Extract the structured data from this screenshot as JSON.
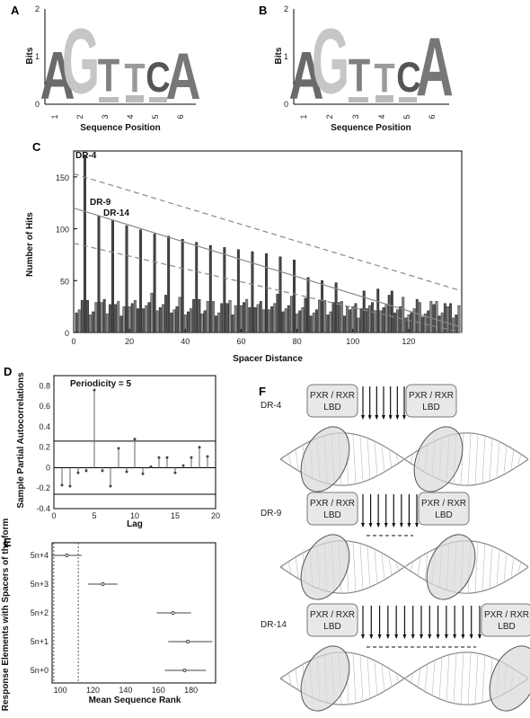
{
  "panels": {
    "A": {
      "label": "A",
      "ylabel": "Bits",
      "xlabel": "Sequence Position",
      "y_ticks": [
        "0",
        "1",
        "2"
      ],
      "x_ticks": [
        "1",
        "2",
        "3",
        "4",
        "5",
        "6"
      ],
      "letters": [
        "A",
        "G",
        "T",
        "T",
        "C",
        "A"
      ]
    },
    "B": {
      "label": "B",
      "ylabel": "Bits",
      "xlabel": "Sequence Position",
      "y_ticks": [
        "0",
        "1",
        "2"
      ],
      "x_ticks": [
        "1",
        "2",
        "3",
        "4",
        "5",
        "6"
      ],
      "letters": [
        "A",
        "G",
        "T",
        "T",
        "C",
        "A"
      ]
    },
    "C": {
      "label": "C",
      "ylabel": "Number of Hits",
      "xlabel": "Spacer Distance",
      "annotations": [
        "DR-4",
        "DR-9",
        "DR-14"
      ]
    },
    "D": {
      "label": "D",
      "ylabel": "Sample Partial Autocorrelations",
      "xlabel": "Lag",
      "annotation": "Periodicity = 5"
    },
    "E": {
      "label": "E",
      "ylabel": "Response Elements with Spacers of the form",
      "xlabel": "Mean Sequence Rank"
    },
    "F": {
      "label": "F",
      "rows": [
        {
          "name": "DR-4",
          "lbd_left": "PXR / RXR",
          "lbd_left2": "LBD",
          "lbd_right": "PXR / RXR",
          "lbd_right2": "LBD"
        },
        {
          "name": "DR-9",
          "lbd_left": "PXR / RXR",
          "lbd_left2": "LBD",
          "lbd_right": "PXR / RXR",
          "lbd_right2": "LBD"
        },
        {
          "name": "DR-14",
          "lbd_left": "PXR / RXR",
          "lbd_left2": "LBD",
          "lbd_right": "PXR / RXR",
          "lbd_right2": "LBD"
        }
      ]
    }
  },
  "chart_data": [
    {
      "type": "bar",
      "title": "",
      "xlabel": "Spacer Distance",
      "ylabel": "Number of Hits",
      "xlim": [
        0,
        139
      ],
      "ylim": [
        0,
        175
      ],
      "x_ticks": [
        0,
        20,
        40,
        60,
        80,
        100,
        120
      ],
      "y_ticks": [
        0,
        50,
        100,
        150
      ],
      "peaks": [
        {
          "x": 4,
          "y": 170
        },
        {
          "x": 9,
          "y": 112
        },
        {
          "x": 14,
          "y": 108
        },
        {
          "x": 19,
          "y": 103
        },
        {
          "x": 24,
          "y": 99
        },
        {
          "x": 29,
          "y": 95
        },
        {
          "x": 34,
          "y": 93
        },
        {
          "x": 39,
          "y": 90
        },
        {
          "x": 44,
          "y": 87
        },
        {
          "x": 49,
          "y": 84
        },
        {
          "x": 54,
          "y": 82
        },
        {
          "x": 59,
          "y": 80
        },
        {
          "x": 64,
          "y": 78
        },
        {
          "x": 69,
          "y": 76
        },
        {
          "x": 74,
          "y": 73
        },
        {
          "x": 79,
          "y": 70
        },
        {
          "x": 84,
          "y": 53
        },
        {
          "x": 89,
          "y": 50
        },
        {
          "x": 94,
          "y": 48
        },
        {
          "x": 104,
          "y": 40
        },
        {
          "x": 109,
          "y": 42
        },
        {
          "x": 114,
          "y": 40
        }
      ],
      "baseline": 22,
      "lines": [
        {
          "name": "upper",
          "x": [
            0,
            139
          ],
          "y": [
            153,
            40
          ]
        },
        {
          "name": "mid",
          "x": [
            0,
            139
          ],
          "y": [
            120,
            5
          ]
        },
        {
          "name": "lower",
          "x": [
            0,
            139
          ],
          "y": [
            86,
            0
          ]
        }
      ]
    },
    {
      "type": "scatter",
      "title": "",
      "xlabel": "Lag",
      "ylabel": "Sample Partial Autocorrelations",
      "xlim": [
        0,
        20
      ],
      "ylim": [
        -0.4,
        0.9
      ],
      "x_ticks": [
        0,
        5,
        10,
        15,
        20
      ],
      "y_ticks": [
        -0.4,
        -0.2,
        0,
        0.2,
        0.4,
        0.6,
        0.8
      ],
      "lags": [
        1,
        2,
        3,
        4,
        5,
        6,
        7,
        8,
        9,
        10,
        11,
        12,
        13,
        14,
        15,
        16,
        17,
        18,
        19
      ],
      "values": [
        -0.17,
        -0.18,
        -0.05,
        -0.03,
        0.76,
        -0.03,
        -0.18,
        0.19,
        -0.04,
        0.28,
        -0.06,
        0.01,
        0.1,
        0.1,
        -0.05,
        0.02,
        0.1,
        0.2,
        0.11
      ],
      "bounds": [
        0.26,
        -0.26
      ]
    },
    {
      "type": "scatter",
      "title": "",
      "xlabel": "Mean Sequence Rank",
      "ylabel": "Response Elements with Spacers of the form",
      "xlim": [
        95,
        195
      ],
      "x_ticks": [
        100,
        120,
        140,
        160,
        180
      ],
      "categories": [
        "5n+4",
        "5n+3",
        "5n+2",
        "5n+1",
        "5n+0"
      ],
      "means": [
        104,
        126,
        169,
        178,
        176
      ],
      "lows": [
        95,
        117,
        159,
        166,
        164
      ],
      "highs": [
        113,
        135,
        180,
        193,
        189
      ],
      "vlines": [
        96,
        111
      ]
    }
  ]
}
